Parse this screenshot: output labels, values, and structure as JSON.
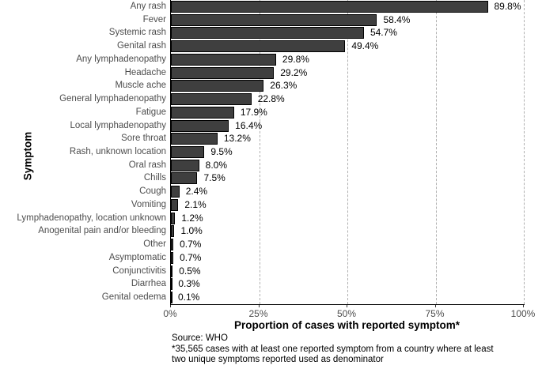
{
  "chart_data": {
    "type": "bar",
    "orientation": "horizontal",
    "title": "",
    "xlabel": "Proportion of cases with reported symptom*",
    "ylabel": "Symptom",
    "categories": [
      "Any rash",
      "Fever",
      "Systemic rash",
      "Genital rash",
      "Any lymphadenopathy",
      "Headache",
      "Muscle ache",
      "General lymphadenopathy",
      "Fatigue",
      "Local lymphadenopathy",
      "Sore throat",
      "Rash, unknown location",
      "Oral rash",
      "Chills",
      "Cough",
      "Vomiting",
      "Lymphadenopathy, location unknown",
      "Anogenital pain and/or bleeding",
      "Other",
      "Asymptomatic",
      "Conjunctivitis",
      "Diarrhea",
      "Genital oedema"
    ],
    "values": [
      89.8,
      58.4,
      54.7,
      49.4,
      29.8,
      29.2,
      26.3,
      22.8,
      17.9,
      16.4,
      13.2,
      9.5,
      8.0,
      7.5,
      2.4,
      2.1,
      1.2,
      1.0,
      0.7,
      0.7,
      0.5,
      0.3,
      0.1
    ],
    "value_labels": [
      "89.8%",
      "58.4%",
      "54.7%",
      "49.4%",
      "29.8%",
      "29.2%",
      "26.3%",
      "22.8%",
      "17.9%",
      "16.4%",
      "13.2%",
      "9.5%",
      "8.0%",
      "7.5%",
      "2.4%",
      "2.1%",
      "1.2%",
      "1.0%",
      "0.7%",
      "0.7%",
      "0.5%",
      "0.3%",
      "0.1%"
    ],
    "x_tick_labels": [
      "0%",
      "25%",
      "50%",
      "75%",
      "100%"
    ],
    "x_tick_values": [
      0,
      25,
      50,
      75,
      100
    ],
    "gridline_values": [
      25,
      50,
      75,
      100
    ],
    "xlim": [
      0,
      100.2
    ],
    "grid": "vertical-dashed",
    "legend_position": "none",
    "bar_color": "#3f3f3f",
    "bar_border_color": "#000000",
    "gridline_color": "#b0b0b0",
    "axis_text_color": "#4d4d4d"
  },
  "caption": {
    "source": "Source: WHO",
    "footnote_line1": "*35,565 cases with at least one reported symptom from a country where at least",
    "footnote_line2": "two unique symptoms reported used as denominator"
  }
}
